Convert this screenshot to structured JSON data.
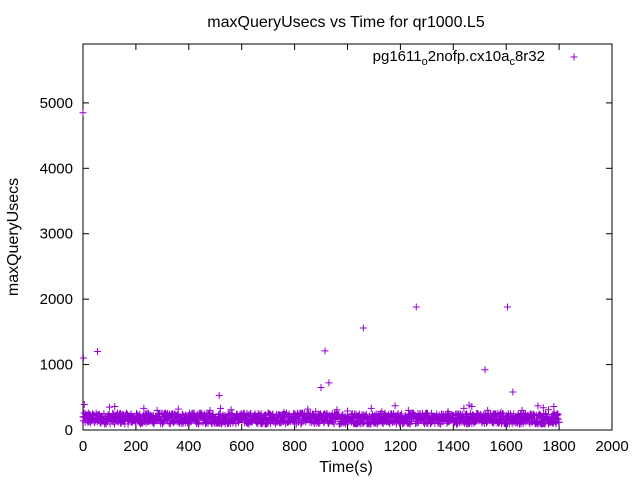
{
  "chart_data": {
    "type": "scatter",
    "title": "maxQueryUsecs vs Time for qr1000.L5",
    "xlabel": "Time(s)",
    "ylabel": "maxQueryUsecs",
    "xlim": [
      0,
      2000
    ],
    "ylim": [
      0,
      5900
    ],
    "x_ticks": [
      0,
      200,
      400,
      600,
      800,
      1000,
      1200,
      1400,
      1600,
      1800,
      2000
    ],
    "y_ticks": [
      0,
      1000,
      2000,
      3000,
      4000,
      5000
    ],
    "grid": false,
    "legend_position": "top-right",
    "marker": "plus",
    "series": [
      {
        "name": "pg1611o2nofp.cx10ac8r32",
        "legend_parts": [
          {
            "text": "pg1611",
            "sub": false
          },
          {
            "text": "o",
            "sub": true
          },
          {
            "text": "2nofp.cx10a",
            "sub": false
          },
          {
            "text": "c",
            "sub": true
          },
          {
            "text": "8r32",
            "sub": false
          }
        ],
        "color": "#9400d3",
        "x": [
          0,
          2,
          5,
          55,
          20,
          100,
          120,
          140,
          230,
          280,
          320,
          360,
          420,
          480,
          515,
          520,
          560,
          620,
          700,
          760,
          800,
          830,
          850,
          880,
          900,
          915,
          930,
          960,
          1000,
          1060,
          1090,
          1130,
          1180,
          1230,
          1260,
          1300,
          1380,
          1440,
          1460,
          1470,
          1520,
          1530,
          1580,
          1605,
          1625,
          1660,
          1720,
          1740,
          1760,
          1780
        ],
        "y": [
          4850,
          1100,
          390,
          1200,
          260,
          350,
          360,
          250,
          330,
          300,
          250,
          320,
          260,
          300,
          530,
          330,
          310,
          250,
          260,
          270,
          250,
          260,
          320,
          280,
          650,
          1210,
          720,
          310,
          290,
          1560,
          330,
          280,
          370,
          300,
          1880,
          260,
          280,
          330,
          380,
          360,
          920,
          300,
          270,
          1880,
          580,
          300,
          370,
          340,
          310,
          360
        ]
      }
    ],
    "dense_band": {
      "x_range": [
        0,
        1800
      ],
      "y_range": [
        90,
        260
      ],
      "point_count": 1300
    }
  }
}
